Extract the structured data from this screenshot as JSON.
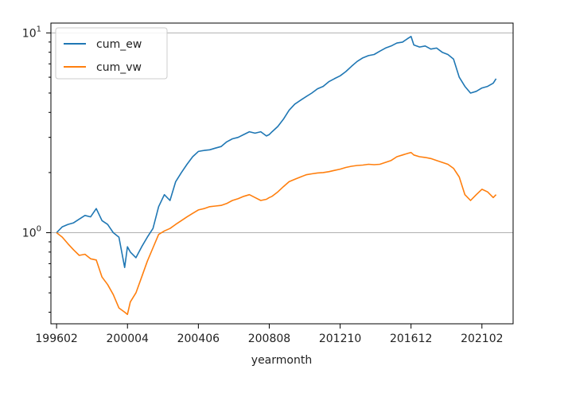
{
  "chart_data": {
    "type": "line",
    "title": "",
    "xlabel": "yearmonth",
    "ylabel": "",
    "yscale": "log",
    "ylim": [
      0.35,
      11.2
    ],
    "xlim": [
      "199510",
      "202212"
    ],
    "grid": "horizontal lines at 10^0 and 10^1",
    "legend_position": "top-left",
    "x_ticks": [
      "199602",
      "200004",
      "200406",
      "200808",
      "201210",
      "201612",
      "202102"
    ],
    "y_ticks": [
      {
        "value": 1,
        "label_base": "10",
        "label_exp": "0"
      },
      {
        "value": 10,
        "label_base": "10",
        "label_exp": "1"
      }
    ],
    "colors": {
      "cum_ew": "#1f77b4",
      "cum_vw": "#ff7f0e",
      "grid": "#b0b0b0"
    },
    "series": [
      {
        "name": "cum_ew",
        "points": [
          [
            "199602",
            1.0
          ],
          [
            "199606",
            1.07
          ],
          [
            "199610",
            1.1
          ],
          [
            "199702",
            1.12
          ],
          [
            "199706",
            1.17
          ],
          [
            "199710",
            1.22
          ],
          [
            "199802",
            1.2
          ],
          [
            "199806",
            1.32
          ],
          [
            "199810",
            1.15
          ],
          [
            "199902",
            1.1
          ],
          [
            "199906",
            1.0
          ],
          [
            "199910",
            0.95
          ],
          [
            "200002",
            0.67
          ],
          [
            "200004",
            0.85
          ],
          [
            "200006",
            0.8
          ],
          [
            "200010",
            0.75
          ],
          [
            "200102",
            0.85
          ],
          [
            "200106",
            0.95
          ],
          [
            "200110",
            1.05
          ],
          [
            "200202",
            1.35
          ],
          [
            "200206",
            1.55
          ],
          [
            "200210",
            1.45
          ],
          [
            "200302",
            1.8
          ],
          [
            "200306",
            2.0
          ],
          [
            "200310",
            2.2
          ],
          [
            "200402",
            2.4
          ],
          [
            "200406",
            2.55
          ],
          [
            "200410",
            2.58
          ],
          [
            "200502",
            2.6
          ],
          [
            "200506",
            2.65
          ],
          [
            "200510",
            2.7
          ],
          [
            "200602",
            2.85
          ],
          [
            "200606",
            2.95
          ],
          [
            "200610",
            3.0
          ],
          [
            "200702",
            3.1
          ],
          [
            "200706",
            3.2
          ],
          [
            "200710",
            3.15
          ],
          [
            "200802",
            3.2
          ],
          [
            "200806",
            3.05
          ],
          [
            "200808",
            3.1
          ],
          [
            "200810",
            3.2
          ],
          [
            "200902",
            3.4
          ],
          [
            "200906",
            3.7
          ],
          [
            "200910",
            4.1
          ],
          [
            "201002",
            4.4
          ],
          [
            "201006",
            4.6
          ],
          [
            "201010",
            4.8
          ],
          [
            "201102",
            5.0
          ],
          [
            "201106",
            5.25
          ],
          [
            "201110",
            5.4
          ],
          [
            "201202",
            5.7
          ],
          [
            "201206",
            5.9
          ],
          [
            "201210",
            6.1
          ],
          [
            "201302",
            6.4
          ],
          [
            "201306",
            6.8
          ],
          [
            "201310",
            7.2
          ],
          [
            "201402",
            7.5
          ],
          [
            "201406",
            7.7
          ],
          [
            "201410",
            7.8
          ],
          [
            "201502",
            8.1
          ],
          [
            "201506",
            8.4
          ],
          [
            "201510",
            8.6
          ],
          [
            "201602",
            8.9
          ],
          [
            "201606",
            9.0
          ],
          [
            "201610",
            9.4
          ],
          [
            "201612",
            9.6
          ],
          [
            "201702",
            8.7
          ],
          [
            "201706",
            8.5
          ],
          [
            "201710",
            8.6
          ],
          [
            "201802",
            8.3
          ],
          [
            "201806",
            8.4
          ],
          [
            "201810",
            8.0
          ],
          [
            "201902",
            7.8
          ],
          [
            "201906",
            7.4
          ],
          [
            "201910",
            6.0
          ],
          [
            "202002",
            5.4
          ],
          [
            "202006",
            5.0
          ],
          [
            "202010",
            5.1
          ],
          [
            "202102",
            5.3
          ],
          [
            "202106",
            5.4
          ],
          [
            "202110",
            5.6
          ],
          [
            "202112",
            5.9
          ]
        ]
      },
      {
        "name": "cum_vw",
        "points": [
          [
            "199602",
            1.0
          ],
          [
            "199606",
            0.95
          ],
          [
            "199610",
            0.88
          ],
          [
            "199702",
            0.82
          ],
          [
            "199706",
            0.77
          ],
          [
            "199710",
            0.78
          ],
          [
            "199802",
            0.74
          ],
          [
            "199806",
            0.73
          ],
          [
            "199810",
            0.6
          ],
          [
            "199902",
            0.55
          ],
          [
            "199906",
            0.49
          ],
          [
            "199910",
            0.42
          ],
          [
            "200002",
            0.4
          ],
          [
            "200004",
            0.39
          ],
          [
            "200006",
            0.45
          ],
          [
            "200010",
            0.5
          ],
          [
            "200102",
            0.6
          ],
          [
            "200106",
            0.72
          ],
          [
            "200110",
            0.84
          ],
          [
            "200202",
            0.98
          ],
          [
            "200206",
            1.02
          ],
          [
            "200210",
            1.05
          ],
          [
            "200302",
            1.1
          ],
          [
            "200306",
            1.15
          ],
          [
            "200310",
            1.2
          ],
          [
            "200402",
            1.25
          ],
          [
            "200406",
            1.3
          ],
          [
            "200410",
            1.32
          ],
          [
            "200502",
            1.35
          ],
          [
            "200506",
            1.36
          ],
          [
            "200510",
            1.37
          ],
          [
            "200602",
            1.4
          ],
          [
            "200606",
            1.45
          ],
          [
            "200610",
            1.48
          ],
          [
            "200702",
            1.52
          ],
          [
            "200706",
            1.55
          ],
          [
            "200710",
            1.5
          ],
          [
            "200802",
            1.45
          ],
          [
            "200806",
            1.47
          ],
          [
            "200808",
            1.5
          ],
          [
            "200810",
            1.52
          ],
          [
            "200902",
            1.6
          ],
          [
            "200906",
            1.7
          ],
          [
            "200910",
            1.8
          ],
          [
            "201002",
            1.85
          ],
          [
            "201006",
            1.9
          ],
          [
            "201010",
            1.95
          ],
          [
            "201102",
            1.97
          ],
          [
            "201106",
            1.99
          ],
          [
            "201110",
            2.0
          ],
          [
            "201202",
            2.02
          ],
          [
            "201206",
            2.05
          ],
          [
            "201210",
            2.08
          ],
          [
            "201302",
            2.12
          ],
          [
            "201306",
            2.15
          ],
          [
            "201310",
            2.17
          ],
          [
            "201402",
            2.18
          ],
          [
            "201406",
            2.2
          ],
          [
            "201410",
            2.19
          ],
          [
            "201502",
            2.2
          ],
          [
            "201506",
            2.25
          ],
          [
            "201510",
            2.3
          ],
          [
            "201602",
            2.4
          ],
          [
            "201606",
            2.45
          ],
          [
            "201610",
            2.5
          ],
          [
            "201612",
            2.52
          ],
          [
            "201702",
            2.45
          ],
          [
            "201706",
            2.4
          ],
          [
            "201710",
            2.38
          ],
          [
            "201802",
            2.35
          ],
          [
            "201806",
            2.3
          ],
          [
            "201810",
            2.25
          ],
          [
            "201902",
            2.2
          ],
          [
            "201906",
            2.1
          ],
          [
            "201910",
            1.9
          ],
          [
            "202002",
            1.55
          ],
          [
            "202006",
            1.45
          ],
          [
            "202010",
            1.55
          ],
          [
            "202102",
            1.65
          ],
          [
            "202106",
            1.6
          ],
          [
            "202110",
            1.5
          ],
          [
            "202112",
            1.55
          ]
        ]
      }
    ]
  }
}
